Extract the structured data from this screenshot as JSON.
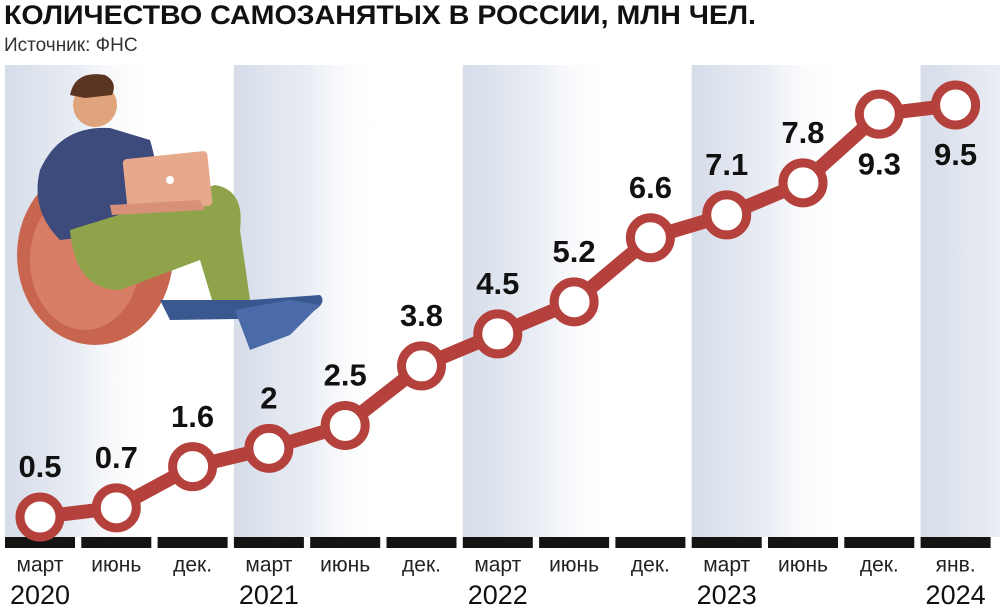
{
  "chart_data": {
    "type": "line",
    "title": "КОЛИЧЕСТВО САМОЗАНЯТЫХ В РОССИИ, МЛН ЧЕЛ.",
    "subtitle": "Источник: ФНС",
    "groups": [
      {
        "label": "2020",
        "categories": [
          "март",
          "июнь",
          "дек."
        ]
      },
      {
        "label": "2021",
        "categories": [
          "март",
          "июнь",
          "дек."
        ]
      },
      {
        "label": "2022",
        "categories": [
          "март",
          "июнь",
          "дек."
        ]
      },
      {
        "label": "2023",
        "categories": [
          "март",
          "июнь",
          "дек."
        ]
      },
      {
        "label": "2024",
        "categories": [
          "янв."
        ]
      }
    ],
    "values": [
      0.5,
      0.7,
      1.6,
      2,
      2.5,
      3.8,
      4.5,
      5.2,
      6.6,
      7.1,
      7.8,
      9.3,
      9.5
    ],
    "color": "#b5413d"
  }
}
